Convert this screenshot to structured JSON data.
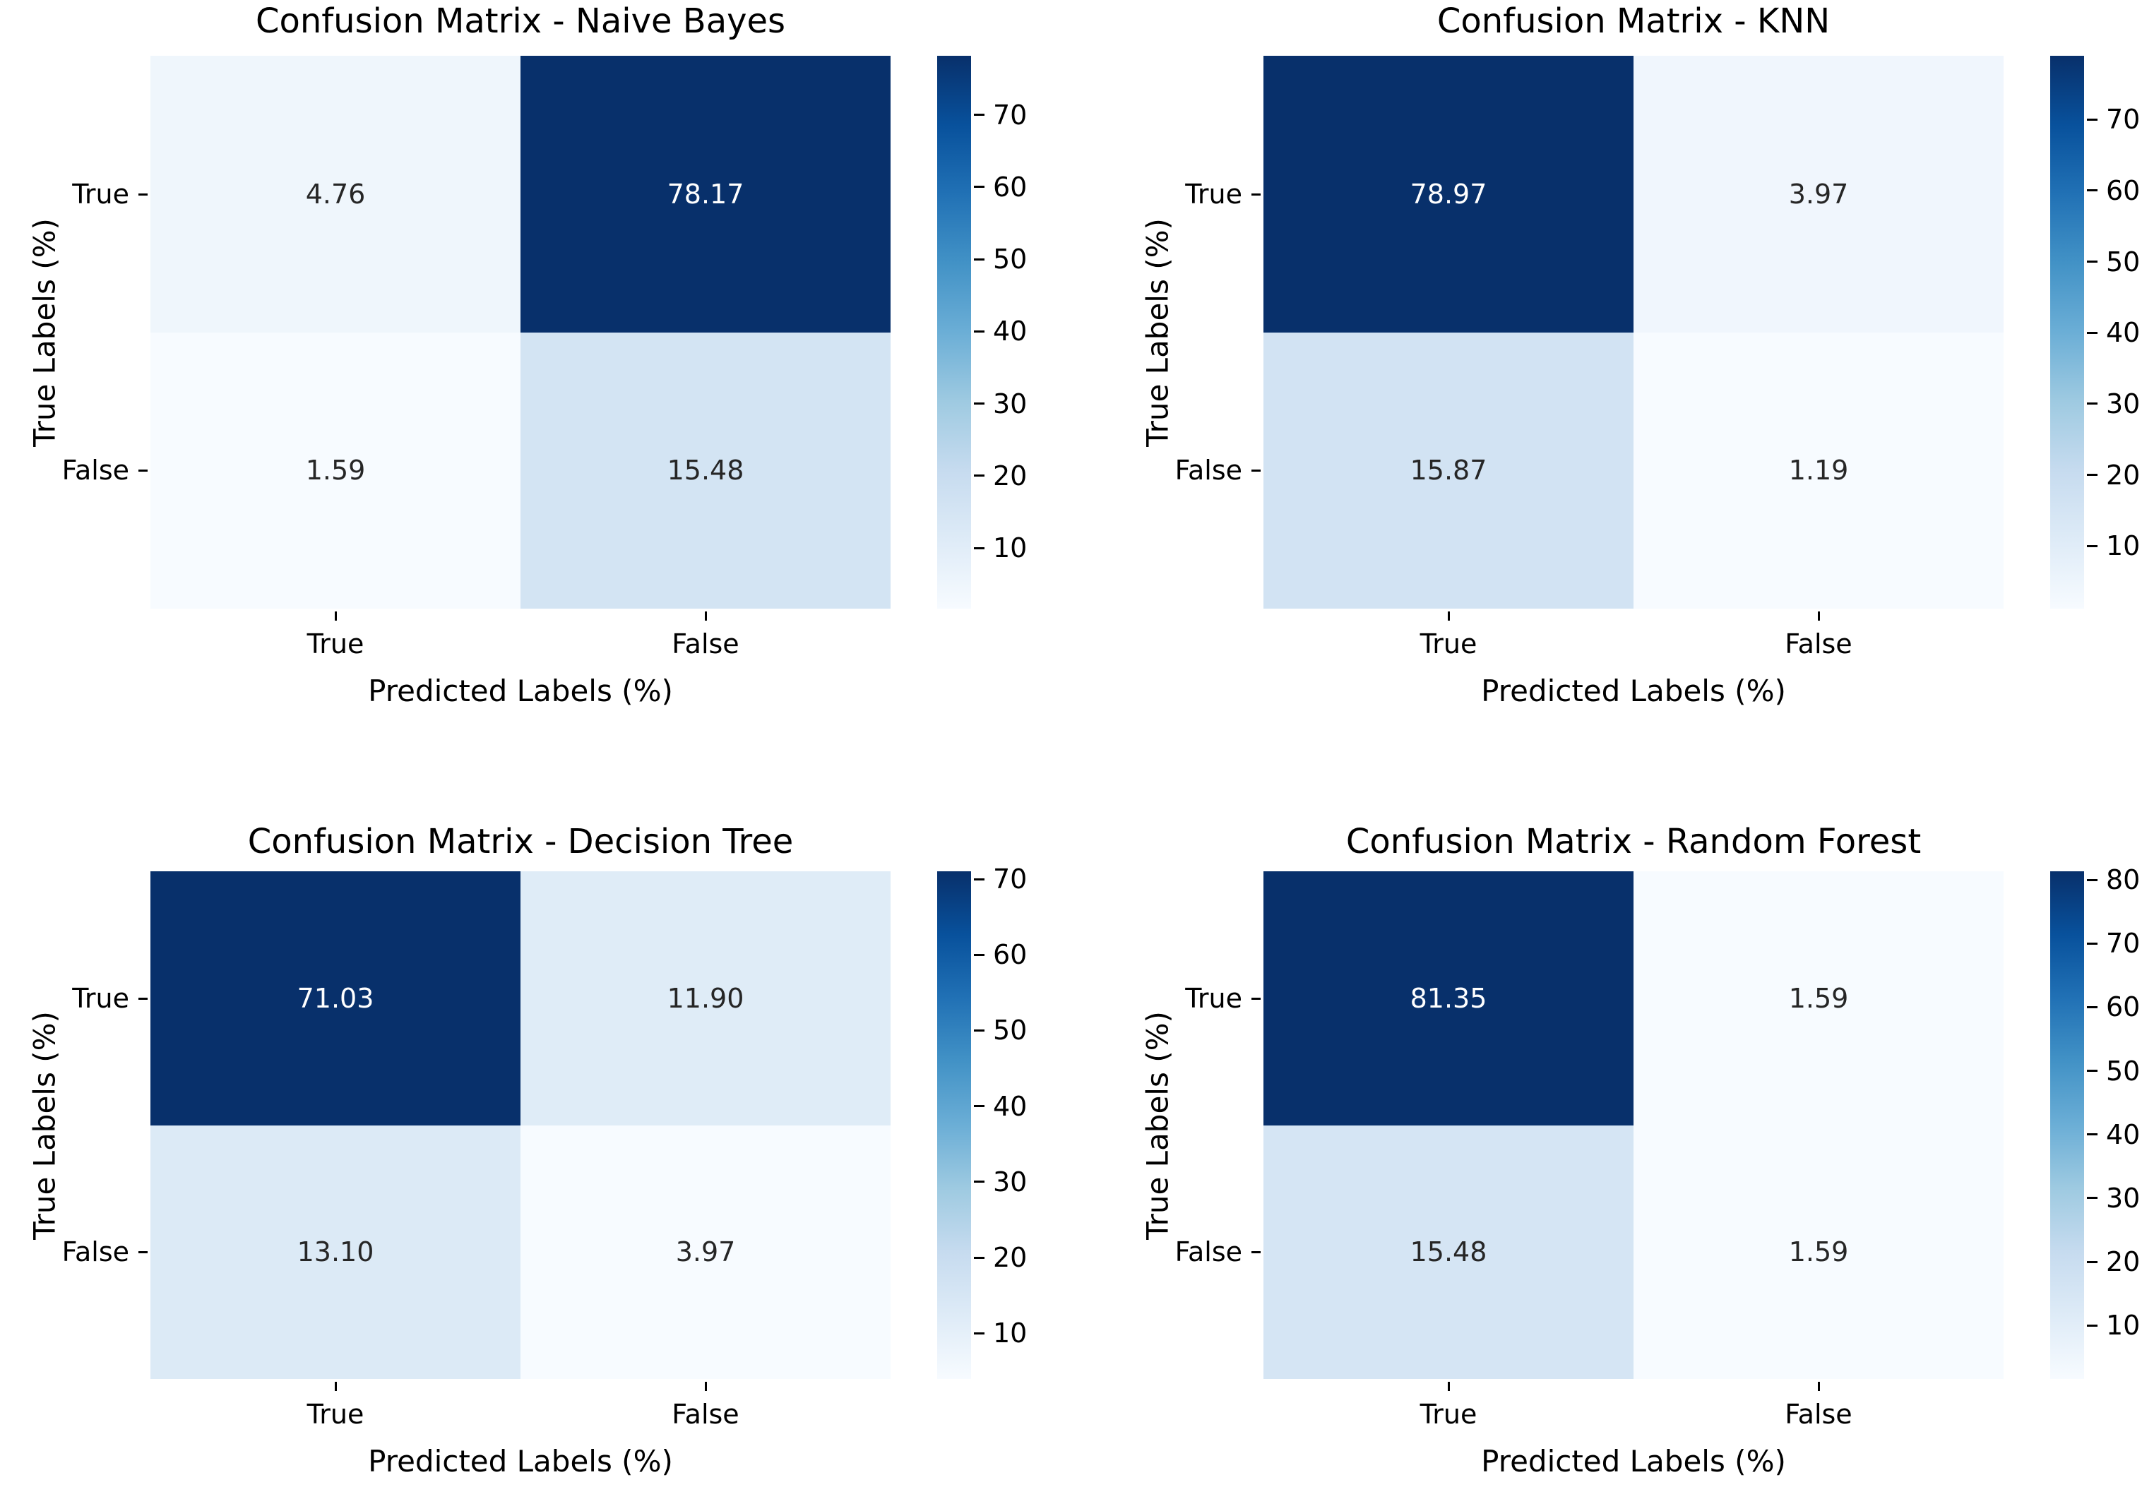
{
  "colors": {
    "background": "#ffffff",
    "axis_text": "#000000",
    "dark_cell_text": "#262626",
    "light_cell_text": "#ffffff",
    "colormap_name": "Blues",
    "colormap_anchors": [
      "#f7fbff",
      "#deebf7",
      "#c6dbef",
      "#9ecae1",
      "#6baed6",
      "#4292c6",
      "#2171b5",
      "#08519c",
      "#08306b"
    ]
  },
  "chart_data": [
    {
      "type": "heatmap",
      "title": "Confusion Matrix - Naive Bayes",
      "xlabel": "Predicted Labels (%)",
      "ylabel": "True Labels (%)",
      "x_categories": [
        "True",
        "False"
      ],
      "y_categories": [
        "True",
        "False"
      ],
      "values": [
        [
          4.76,
          78.17
        ],
        [
          1.59,
          15.48
        ]
      ],
      "vmin": 1.59,
      "vmax": 78.17,
      "colorbar_ticks": [
        70,
        60,
        50,
        40,
        30,
        20,
        10
      ],
      "legend_position": "right-colorbar",
      "grid": false
    },
    {
      "type": "heatmap",
      "title": "Confusion Matrix - KNN",
      "xlabel": "Predicted Labels (%)",
      "ylabel": "True Labels (%)",
      "x_categories": [
        "True",
        "False"
      ],
      "y_categories": [
        "True",
        "False"
      ],
      "values": [
        [
          78.97,
          3.97
        ],
        [
          15.87,
          1.19
        ]
      ],
      "vmin": 1.19,
      "vmax": 78.97,
      "colorbar_ticks": [
        70,
        60,
        50,
        40,
        30,
        20,
        10
      ],
      "legend_position": "right-colorbar",
      "grid": false
    },
    {
      "type": "heatmap",
      "title": "Confusion Matrix - Decision Tree",
      "xlabel": "Predicted Labels (%)",
      "ylabel": "True Labels (%)",
      "x_categories": [
        "True",
        "False"
      ],
      "y_categories": [
        "True",
        "False"
      ],
      "values": [
        [
          71.03,
          11.9
        ],
        [
          13.1,
          3.97
        ]
      ],
      "vmin": 3.97,
      "vmax": 71.03,
      "colorbar_ticks": [
        70,
        60,
        50,
        40,
        30,
        20,
        10
      ],
      "legend_position": "right-colorbar",
      "grid": false
    },
    {
      "type": "heatmap",
      "title": "Confusion Matrix - Random Forest",
      "xlabel": "Predicted Labels (%)",
      "ylabel": "True Labels (%)",
      "x_categories": [
        "True",
        "False"
      ],
      "y_categories": [
        "True",
        "False"
      ],
      "values": [
        [
          81.35,
          1.59
        ],
        [
          15.48,
          1.59
        ]
      ],
      "vmin": 1.59,
      "vmax": 81.35,
      "colorbar_ticks": [
        80,
        70,
        60,
        50,
        40,
        30,
        20,
        10
      ],
      "legend_position": "right-colorbar",
      "grid": false
    }
  ]
}
